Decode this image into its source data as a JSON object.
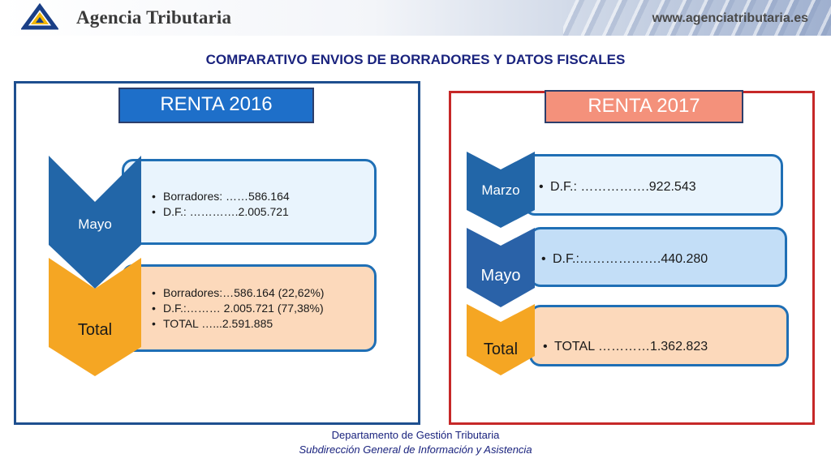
{
  "header": {
    "agency_name": "Agencia Tributaria",
    "website": "www.agenciatributaria.es"
  },
  "title": "COMPARATIVO ENVIOS DE BORRADORES Y DATOS FISCALES",
  "renta2016": {
    "badge": "RENTA 2016",
    "mayo": {
      "label": "Mayo",
      "items": [
        "Borradores: ……586.164",
        "D.F.: ………….2.005.721"
      ]
    },
    "total": {
      "label": "Total",
      "items": [
        "Borradores:…586.164 (22,62%)",
        "D.F.:……… 2.005.721 (77,38%)",
        "TOTAL …...2.591.885"
      ]
    }
  },
  "renta2017": {
    "badge": "RENTA 2017",
    "marzo": {
      "label": "Marzo",
      "items": [
        "D.F.: …………….922.543"
      ]
    },
    "mayo": {
      "label": "Mayo",
      "items": [
        "D.F.:……………….440.280"
      ]
    },
    "total": {
      "label": "Total",
      "items": [
        "TOTAL …………1.362.823"
      ]
    }
  },
  "footer": {
    "line1": "Departamento de Gestión Tributaria",
    "line2": "Subdirección General de Información y Asistencia"
  },
  "colors": {
    "blue_chevron": "#2266a8",
    "orange_chevron": "#f5a623",
    "panel_2016_border": "#1e4f8f",
    "panel_2017_border": "#c62828",
    "badge_2016": "#1e6fc9",
    "badge_2017": "#f4917b"
  }
}
